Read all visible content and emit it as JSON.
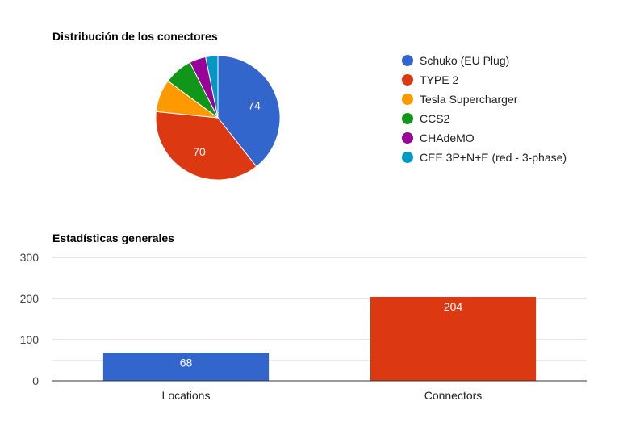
{
  "chart_data": [
    {
      "type": "pie",
      "title": "Distribución de los conectores",
      "legend_position": "right",
      "slices": [
        {
          "label": "Schuko (EU Plug)",
          "value": 74,
          "color": "#3366cc"
        },
        {
          "label": "TYPE 2",
          "value": 70,
          "color": "#dc3912"
        },
        {
          "label": "Tesla Supercharger",
          "value": 16,
          "color": "#ff9900"
        },
        {
          "label": "CCS2",
          "value": 14,
          "color": "#109618"
        },
        {
          "label": "CHAdeMO",
          "value": 8,
          "color": "#990099"
        },
        {
          "label": "CEE 3P+N+E (red - 3-phase)",
          "value": 6,
          "color": "#0099c6"
        }
      ]
    },
    {
      "type": "bar",
      "title": "Estadísticas generales",
      "categories": [
        "Locations",
        "Connectors"
      ],
      "values": [
        68,
        204
      ],
      "colors": [
        "#3366cc",
        "#dc3912"
      ],
      "ylim": [
        0,
        300
      ],
      "yticks": [
        0,
        100,
        200,
        300
      ],
      "grid": true
    }
  ]
}
